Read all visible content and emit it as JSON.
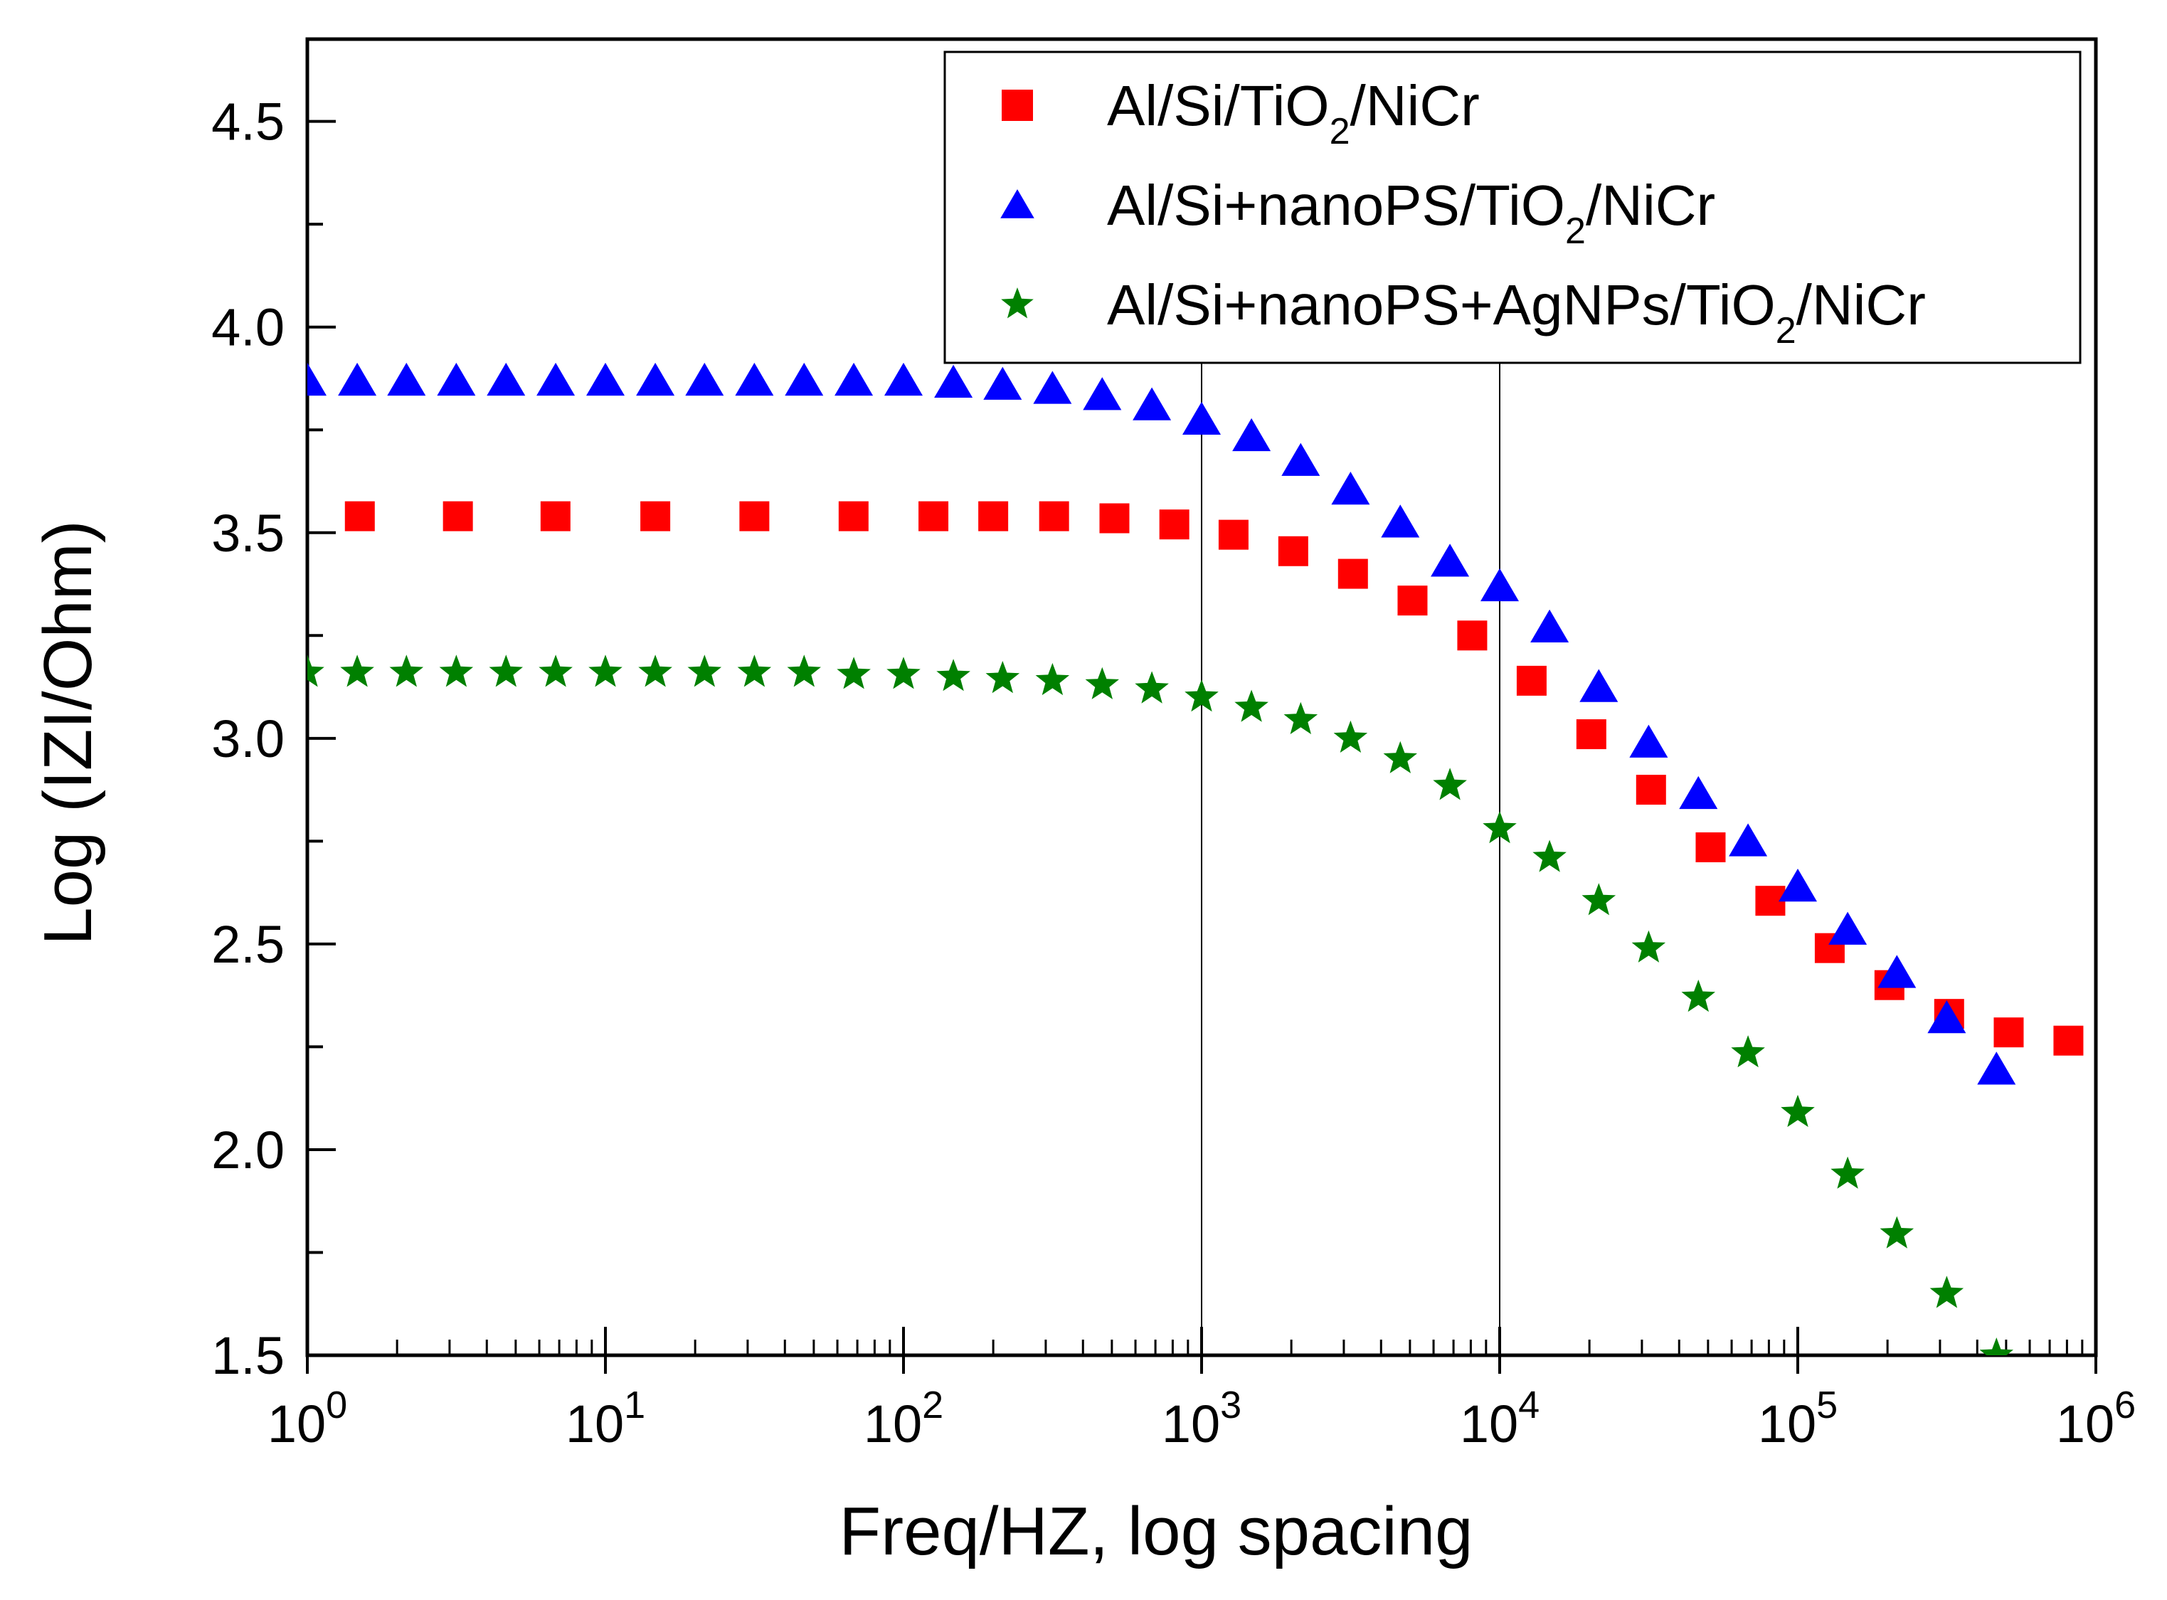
{
  "chart_data": {
    "type": "scatter",
    "xscale": "log",
    "xlabel": "Freq/HZ, log spacing",
    "ylabel": "Log (IZI/Ohm)",
    "xlim": [
      1,
      1000000
    ],
    "ylim": [
      1.5,
      4.7
    ],
    "yticks": [
      {
        "value": 1.5,
        "label": "1.5"
      },
      {
        "value": 2.0,
        "label": "2.0"
      },
      {
        "value": 2.5,
        "label": "2.5"
      },
      {
        "value": 3.0,
        "label": "3.0"
      },
      {
        "value": 3.5,
        "label": "3.5"
      },
      {
        "value": 4.0,
        "label": "4.0"
      },
      {
        "value": 4.5,
        "label": "4.5"
      }
    ],
    "xticks": [
      {
        "exp": 0,
        "base": "10",
        "sup": "0"
      },
      {
        "exp": 1,
        "base": "10",
        "sup": "1"
      },
      {
        "exp": 2,
        "base": "10",
        "sup": "2"
      },
      {
        "exp": 3,
        "base": "10",
        "sup": "3"
      },
      {
        "exp": 4,
        "base": "10",
        "sup": "4"
      },
      {
        "exp": 5,
        "base": "10",
        "sup": "5"
      },
      {
        "exp": 6,
        "base": "10",
        "sup": "6"
      }
    ],
    "reference_lines_x": [
      1000,
      10000
    ],
    "legend_position": "top-right",
    "series": [
      {
        "name": "Al/Si/TiO2/NiCr",
        "legend_parts": [
          "Al/Si/TiO",
          "2",
          "/NiCr"
        ],
        "marker": "square",
        "color": "#ff0000",
        "points": [
          [
            1.5,
            3.54
          ],
          [
            3.2,
            3.54
          ],
          [
            6.8,
            3.54
          ],
          [
            14.7,
            3.54
          ],
          [
            31.6,
            3.54
          ],
          [
            68,
            3.54
          ],
          [
            126,
            3.54
          ],
          [
            200,
            3.54
          ],
          [
            320,
            3.54
          ],
          [
            510,
            3.535
          ],
          [
            810,
            3.52
          ],
          [
            1280,
            3.495
          ],
          [
            2030,
            3.455
          ],
          [
            3220,
            3.4
          ],
          [
            5100,
            3.335
          ],
          [
            8090,
            3.25
          ],
          [
            12800,
            3.14
          ],
          [
            20300,
            3.01
          ],
          [
            32200,
            2.875
          ],
          [
            51000,
            2.735
          ],
          [
            80900,
            2.605
          ],
          [
            128000,
            2.49
          ],
          [
            203000,
            2.4
          ],
          [
            322000,
            2.33
          ],
          [
            510000,
            2.285
          ],
          [
            809000,
            2.265
          ]
        ]
      },
      {
        "name": "Al/Si+nanoPS/TiO2/NiCr",
        "legend_parts": [
          "Al/Si+nanoPS/TiO",
          "2",
          "/NiCr"
        ],
        "marker": "triangle",
        "color": "#0000ff",
        "points": [
          [
            1,
            3.87
          ],
          [
            1.47,
            3.87
          ],
          [
            2.15,
            3.87
          ],
          [
            3.16,
            3.87
          ],
          [
            4.64,
            3.87
          ],
          [
            6.81,
            3.87
          ],
          [
            10,
            3.87
          ],
          [
            14.7,
            3.87
          ],
          [
            21.5,
            3.87
          ],
          [
            31.6,
            3.87
          ],
          [
            46.4,
            3.87
          ],
          [
            68.1,
            3.87
          ],
          [
            100,
            3.87
          ],
          [
            147,
            3.865
          ],
          [
            215,
            3.86
          ],
          [
            316,
            3.85
          ],
          [
            464,
            3.835
          ],
          [
            681,
            3.81
          ],
          [
            1000,
            3.775
          ],
          [
            1470,
            3.735
          ],
          [
            2150,
            3.675
          ],
          [
            3160,
            3.605
          ],
          [
            4640,
            3.525
          ],
          [
            6810,
            3.43
          ],
          [
            10000,
            3.37
          ],
          [
            14700,
            3.27
          ],
          [
            21500,
            3.125
          ],
          [
            31600,
            2.99
          ],
          [
            46400,
            2.865
          ],
          [
            68100,
            2.75
          ],
          [
            100000,
            2.64
          ],
          [
            147000,
            2.535
          ],
          [
            215000,
            2.43
          ],
          [
            316000,
            2.32
          ],
          [
            464000,
            2.195
          ]
        ]
      },
      {
        "name": "Al/Si+nanoPS+AgNPs/TiO2/NiCr",
        "legend_parts": [
          "Al/Si+nanoPS+AgNPs/TiO",
          "2",
          "/NiCr"
        ],
        "marker": "star",
        "color": "#008000",
        "points": [
          [
            1,
            3.16
          ],
          [
            1.47,
            3.16
          ],
          [
            2.15,
            3.16
          ],
          [
            3.16,
            3.16
          ],
          [
            4.64,
            3.16
          ],
          [
            6.81,
            3.16
          ],
          [
            10,
            3.16
          ],
          [
            14.7,
            3.16
          ],
          [
            21.5,
            3.16
          ],
          [
            31.6,
            3.16
          ],
          [
            46.4,
            3.16
          ],
          [
            68.1,
            3.155
          ],
          [
            100,
            3.155
          ],
          [
            147,
            3.15
          ],
          [
            215,
            3.145
          ],
          [
            316,
            3.14
          ],
          [
            464,
            3.13
          ],
          [
            681,
            3.12
          ],
          [
            1000,
            3.1
          ],
          [
            1470,
            3.075
          ],
          [
            2150,
            3.045
          ],
          [
            3160,
            3.0
          ],
          [
            4640,
            2.95
          ],
          [
            6810,
            2.885
          ],
          [
            10000,
            2.78
          ],
          [
            14700,
            2.71
          ],
          [
            21500,
            2.605
          ],
          [
            31600,
            2.49
          ],
          [
            46400,
            2.37
          ],
          [
            68100,
            2.235
          ],
          [
            100000,
            2.09
          ],
          [
            147000,
            1.94
          ],
          [
            215000,
            1.795
          ],
          [
            316000,
            1.65
          ],
          [
            464000,
            1.5
          ]
        ]
      }
    ]
  }
}
